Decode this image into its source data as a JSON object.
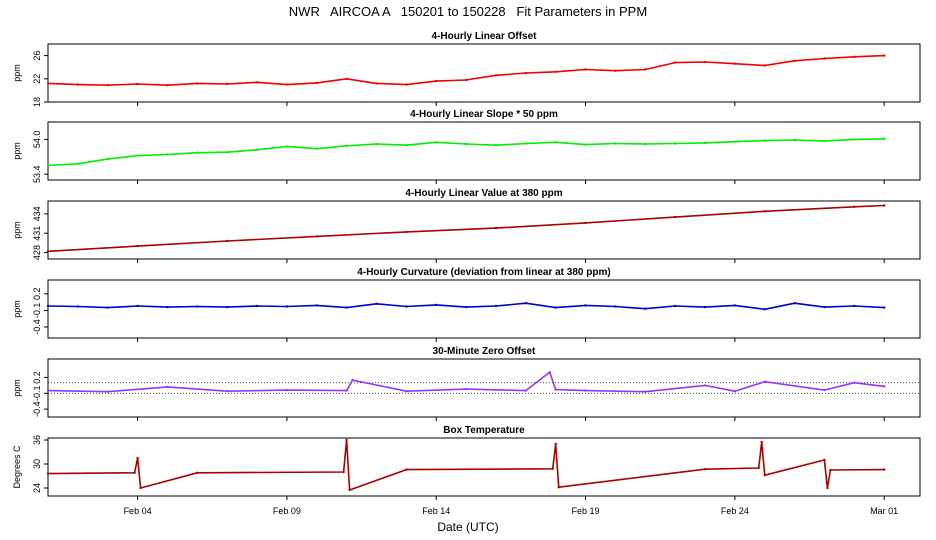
{
  "chart_data": {
    "type": "line",
    "title": "NWR   AIRCOA A   150201 to 150228   Fit Parameters in PPM",
    "xlabel": "Date (UTC)",
    "x_range_days": [
      0.0,
      29.2
    ],
    "x_ticks": [
      {
        "label": "Feb 04",
        "day": 3
      },
      {
        "label": "Feb 09",
        "day": 8
      },
      {
        "label": "Feb 14",
        "day": 13
      },
      {
        "label": "Feb 19",
        "day": 18
      },
      {
        "label": "Feb 24",
        "day": 23
      },
      {
        "label": "Mar 01",
        "day": 28
      }
    ],
    "panels": [
      {
        "title": "4-Hourly Linear Offset",
        "ylabel": "ppm",
        "ylim": [
          18,
          28
        ],
        "yticks": [
          {
            "v": 18,
            "label": "18"
          },
          {
            "v": 22,
            "label": "22"
          },
          {
            "v": 26,
            "label": "26"
          }
        ],
        "color": "#ee0000",
        "series": [
          {
            "x": [
              0,
              1,
              2,
              3,
              4,
              5,
              6,
              7,
              8,
              9,
              10,
              11,
              12,
              13,
              14,
              15,
              16,
              17,
              18,
              19,
              20,
              21,
              22,
              23,
              24,
              25,
              26,
              27,
              28
            ],
            "y": [
              21.2,
              21.0,
              20.9,
              21.1,
              20.9,
              21.2,
              21.1,
              21.4,
              21.0,
              21.3,
              22.0,
              21.2,
              21.0,
              21.6,
              21.8,
              22.6,
              23.0,
              23.2,
              23.6,
              23.4,
              23.6,
              24.8,
              24.9,
              24.6,
              24.3,
              25.1,
              25.5,
              25.8,
              26.0
            ]
          }
        ]
      },
      {
        "title": "4-Hourly Linear Slope * 50 ppm",
        "ylabel": "ppm",
        "ylim": [
          53.3,
          54.3
        ],
        "yticks": [
          {
            "v": 53.4,
            "label": "53.4"
          },
          {
            "v": 54.0,
            "label": "54.0"
          }
        ],
        "color": "#00ee00",
        "series": [
          {
            "x": [
              0,
              1,
              2,
              3,
              4,
              5,
              6,
              7,
              8,
              9,
              10,
              11,
              12,
              13,
              14,
              15,
              16,
              17,
              18,
              19,
              20,
              21,
              22,
              23,
              24,
              25,
              26,
              27,
              28
            ],
            "y": [
              53.55,
              53.58,
              53.66,
              53.72,
              53.74,
              53.77,
              53.78,
              53.82,
              53.88,
              53.84,
              53.89,
              53.92,
              53.9,
              53.95,
              53.92,
              53.9,
              53.93,
              53.95,
              53.91,
              53.93,
              53.92,
              53.93,
              53.94,
              53.96,
              53.98,
              53.99,
              53.97,
              54.0,
              54.01
            ]
          }
        ]
      },
      {
        "title": "4-Hourly Linear Value at 380 ppm",
        "ylabel": "ppm",
        "ylim": [
          427.0,
          436.0
        ],
        "yticks": [
          {
            "v": 428,
            "label": "428"
          },
          {
            "v": 431,
            "label": "431"
          },
          {
            "v": 434,
            "label": "434"
          }
        ],
        "color": "#aa0000",
        "series": [
          {
            "x": [
              0,
              3,
              6,
              9,
              12,
              15,
              18,
              21,
              24,
              27,
              28
            ],
            "y": [
              428.2,
              429.0,
              429.8,
              430.5,
              431.2,
              431.8,
              432.6,
              433.5,
              434.4,
              435.1,
              435.3
            ]
          }
        ]
      },
      {
        "title": "4-Hourly Curvature (deviation from linear at 380 ppm)",
        "ylabel": "ppm",
        "ylim": [
          -0.6,
          0.45
        ],
        "yticks": [
          {
            "v": -0.4,
            "label": "-0.4"
          },
          {
            "v": -0.1,
            "label": "-0.1"
          },
          {
            "v": 0.2,
            "label": "0.2"
          }
        ],
        "color": "#0000cc",
        "series": [
          {
            "x": [
              0,
              1,
              2,
              3,
              4,
              5,
              6,
              7,
              8,
              9,
              10,
              11,
              12,
              13,
              14,
              15,
              16,
              17,
              18,
              19,
              20,
              21,
              22,
              23,
              24,
              25,
              26,
              27,
              28
            ],
            "y": [
              -0.02,
              -0.03,
              -0.05,
              -0.02,
              -0.04,
              -0.03,
              -0.04,
              -0.02,
              -0.03,
              -0.01,
              -0.05,
              0.02,
              -0.03,
              0.0,
              -0.04,
              -0.02,
              0.03,
              -0.05,
              -0.01,
              -0.03,
              -0.07,
              -0.02,
              -0.04,
              -0.01,
              -0.08,
              0.03,
              -0.04,
              -0.02,
              -0.05
            ]
          }
        ]
      },
      {
        "title": "30-Minute Zero Offset",
        "ylabel": "ppm",
        "ylim": [
          -0.55,
          0.55
        ],
        "yticks": [
          {
            "v": -0.4,
            "label": "-0.4"
          },
          {
            "v": -0.1,
            "label": "-0.1"
          },
          {
            "v": 0.2,
            "label": "0.2"
          }
        ],
        "color": "#9933ff",
        "reference_lines": [
          -0.1,
          0.1
        ],
        "series": [
          {
            "x": [
              0,
              2,
              4,
              6,
              8,
              10,
              10.2,
              12,
              14,
              16,
              16.8,
              17,
              18,
              20,
              22,
              23,
              24,
              26,
              27,
              28
            ],
            "y": [
              -0.05,
              -0.07,
              0.02,
              -0.06,
              -0.04,
              -0.05,
              0.15,
              -0.06,
              -0.02,
              -0.05,
              0.3,
              -0.03,
              -0.05,
              -0.07,
              0.05,
              -0.06,
              0.12,
              -0.04,
              0.1,
              0.03
            ]
          }
        ]
      },
      {
        "title": "Box Temperature",
        "ylabel": "Degrees C",
        "ylim": [
          22,
          36.5
        ],
        "yticks": [
          {
            "v": 24,
            "label": "24"
          },
          {
            "v": 30,
            "label": "30"
          },
          {
            "v": 36,
            "label": "36"
          }
        ],
        "color": "#aa0000",
        "series": [
          {
            "x": [
              0,
              2.9,
              3.0,
              3.1,
              5,
              9.9,
              10.0,
              10.1,
              12,
              16.9,
              17.0,
              17.1,
              22,
              23.8,
              23.9,
              24.0,
              26.0,
              26.1,
              26.2,
              28
            ],
            "y": [
              27.6,
              27.8,
              31.5,
              24.0,
              27.8,
              28.0,
              36.0,
              23.5,
              28.6,
              28.8,
              35.0,
              24.2,
              28.7,
              29.0,
              35.5,
              27.2,
              31.0,
              24.0,
              28.5,
              28.6
            ]
          }
        ]
      }
    ]
  }
}
